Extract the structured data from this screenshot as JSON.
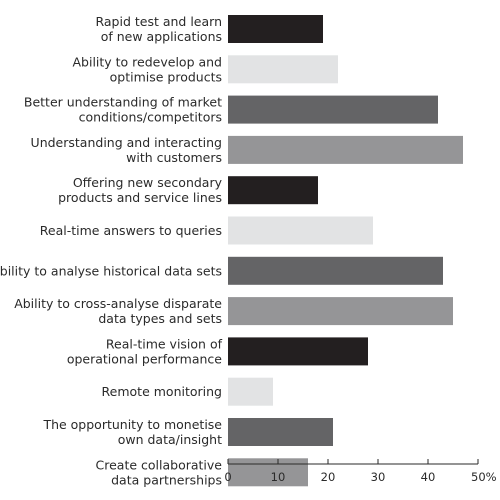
{
  "chart_data": {
    "type": "bar",
    "orientation": "horizontal",
    "title": "",
    "xlabel": "",
    "ylabel": "",
    "xlim": [
      0,
      50
    ],
    "ticks": [
      0,
      10,
      20,
      30,
      40,
      50
    ],
    "tick_labels": [
      "0",
      "10",
      "20",
      "30",
      "40",
      "50%"
    ],
    "grid": false,
    "legend": "none",
    "categories": [
      [
        "Rapid test and learn",
        "of new applications"
      ],
      [
        "Ability to redevelop and",
        "optimise products"
      ],
      [
        "Better understanding of market",
        "conditions/competitors"
      ],
      [
        "Understanding and interacting",
        "with customers"
      ],
      [
        "Offering new secondary",
        "products and service lines"
      ],
      [
        "Real-time answers to queries"
      ],
      [
        "Ability to analyse historical data sets"
      ],
      [
        "Ability to cross-analyse disparate",
        "data types and sets"
      ],
      [
        "Real-time vision of",
        "operational performance"
      ],
      [
        "Remote monitoring"
      ],
      [
        "The opportunity to monetise",
        "own data/insight"
      ],
      [
        "Create collaborative",
        "data partnerships"
      ]
    ],
    "values": [
      19,
      22,
      42,
      47,
      18,
      29,
      43,
      45,
      28,
      9,
      21,
      16
    ],
    "bar_colors": [
      "#231f20",
      "#e2e3e4",
      "#646466",
      "#959597",
      "#231f20",
      "#e2e3e4",
      "#646466",
      "#959597",
      "#231f20",
      "#e2e3e4",
      "#646466",
      "#959597"
    ]
  }
}
